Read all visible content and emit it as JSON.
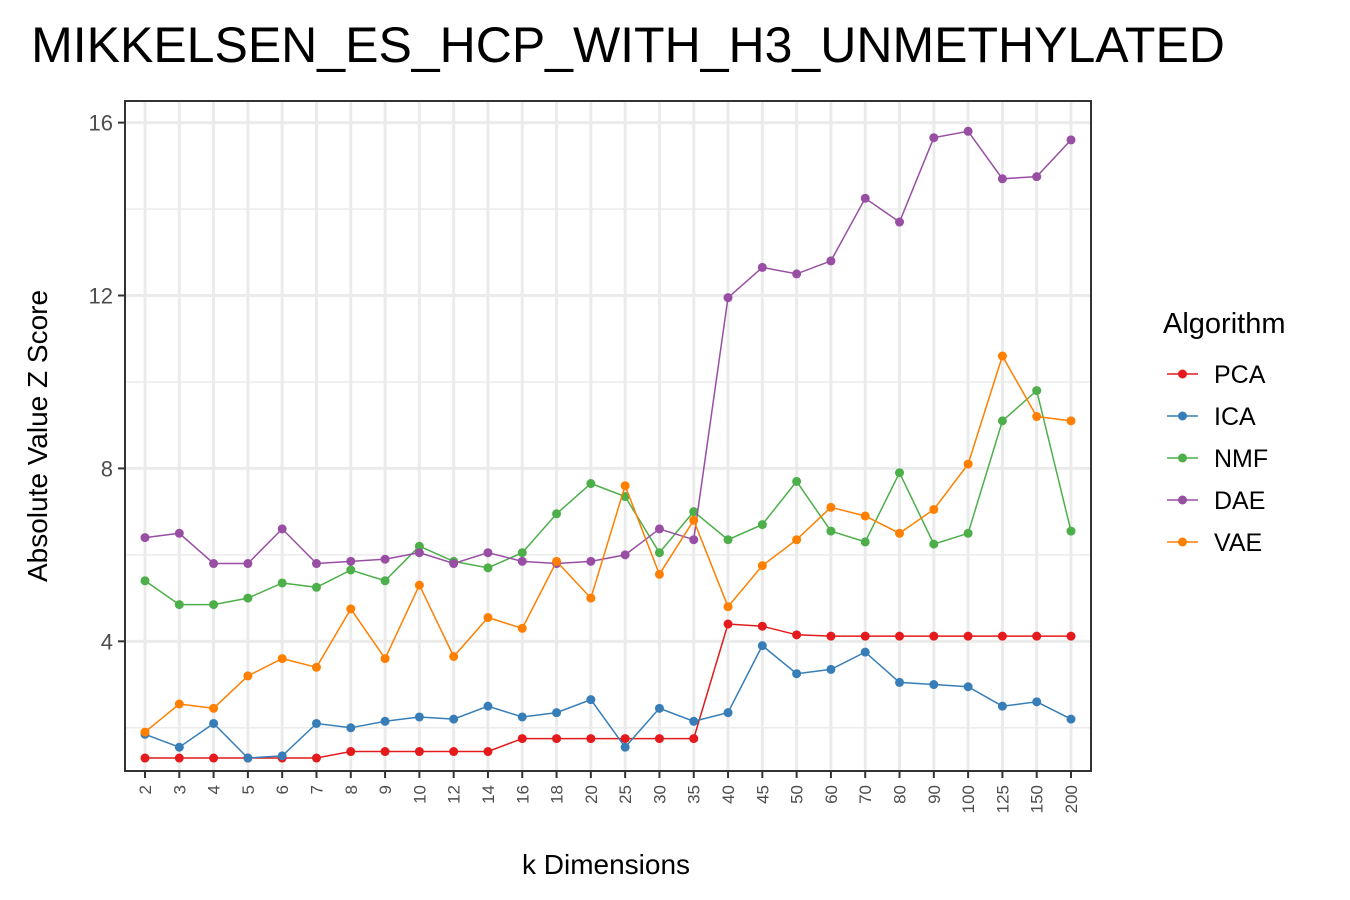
{
  "chart_data": {
    "type": "line",
    "title": "MIKKELSEN_ES_HCP_WITH_H3_UNMETHYLATED",
    "xlabel": "k Dimensions",
    "ylabel": "Absolute Value Z Score",
    "categories": [
      "2",
      "3",
      "4",
      "5",
      "6",
      "7",
      "8",
      "9",
      "10",
      "12",
      "14",
      "16",
      "18",
      "20",
      "25",
      "30",
      "35",
      "40",
      "45",
      "50",
      "60",
      "70",
      "80",
      "90",
      "100",
      "125",
      "150",
      "200"
    ],
    "y_ticks": [
      "4",
      "8",
      "12",
      "16"
    ],
    "ylim": [
      1.0,
      16.5
    ],
    "grid": true,
    "legend": {
      "title": "Algorithm",
      "position": "right"
    },
    "series": [
      {
        "name": "PCA",
        "color": "#E41A1C",
        "values": [
          1.3,
          1.3,
          1.3,
          1.3,
          1.3,
          1.3,
          1.45,
          1.45,
          1.45,
          1.45,
          1.45,
          1.75,
          1.75,
          1.75,
          1.75,
          1.75,
          1.75,
          4.4,
          4.35,
          4.15,
          4.12,
          4.12,
          4.12,
          4.12,
          4.12,
          4.12,
          4.12,
          4.12
        ]
      },
      {
        "name": "ICA",
        "color": "#377EB8",
        "values": [
          1.85,
          1.55,
          2.1,
          1.3,
          1.35,
          2.1,
          2.0,
          2.15,
          2.25,
          2.2,
          2.5,
          2.25,
          2.35,
          2.65,
          1.55,
          2.45,
          2.15,
          2.35,
          3.9,
          3.25,
          3.35,
          3.75,
          3.05,
          3.0,
          2.95,
          2.5,
          2.6,
          2.2
        ]
      },
      {
        "name": "NMF",
        "color": "#4DAF4A",
        "values": [
          5.4,
          4.85,
          4.85,
          5.0,
          5.35,
          5.25,
          5.65,
          5.4,
          6.2,
          5.85,
          5.7,
          6.05,
          6.95,
          7.65,
          7.35,
          6.05,
          7.0,
          6.35,
          6.7,
          7.7,
          6.55,
          6.3,
          7.9,
          6.25,
          6.5,
          9.1,
          9.8,
          6.55
        ]
      },
      {
        "name": "DAE",
        "color": "#984EA3",
        "values": [
          6.4,
          6.5,
          5.8,
          5.8,
          6.6,
          5.8,
          5.85,
          5.9,
          6.05,
          5.8,
          6.05,
          5.85,
          5.8,
          5.85,
          6.0,
          6.6,
          6.35,
          11.95,
          12.65,
          12.5,
          12.8,
          14.25,
          13.7,
          15.65,
          15.8,
          14.7,
          14.75,
          15.6
        ]
      },
      {
        "name": "VAE",
        "color": "#FF7F00",
        "values": [
          1.9,
          2.55,
          2.45,
          3.2,
          3.6,
          3.4,
          4.75,
          3.6,
          5.3,
          3.65,
          4.55,
          4.3,
          5.85,
          5.0,
          7.6,
          5.55,
          6.8,
          4.8,
          5.75,
          6.35,
          7.1,
          6.9,
          6.5,
          7.05,
          8.1,
          10.6,
          9.2,
          9.1
        ]
      }
    ]
  }
}
